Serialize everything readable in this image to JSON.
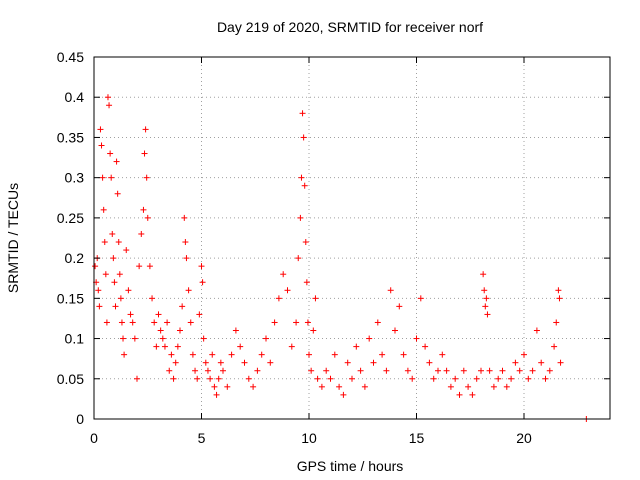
{
  "chart_data": {
    "type": "scatter",
    "title": "Day 219 of 2020, SRMTID for receiver norf",
    "xlabel": "GPS time / hours",
    "ylabel": "SRMTID / TECUs",
    "xlim": [
      0,
      24
    ],
    "ylim": [
      0,
      0.45
    ],
    "xticks": [
      0,
      5,
      10,
      15,
      20
    ],
    "yticks": [
      0,
      0.05,
      0.1,
      0.15,
      0.2,
      0.25,
      0.3,
      0.35,
      0.4,
      0.45
    ],
    "xtick_labels": [
      "0",
      "5",
      "10",
      "15",
      "20"
    ],
    "ytick_labels": [
      "0",
      "0.05",
      "0.1",
      "0.15",
      "0.2",
      "0.25",
      "0.3",
      "0.35",
      "0.4",
      "0.45"
    ],
    "grid": true,
    "marker": "+",
    "color": "#ff0000",
    "series": [
      {
        "name": "SRMTID",
        "points": [
          [
            0.05,
            0.19
          ],
          [
            0.1,
            0.17
          ],
          [
            0.15,
            0.2
          ],
          [
            0.2,
            0.16
          ],
          [
            0.25,
            0.14
          ],
          [
            0.3,
            0.36
          ],
          [
            0.35,
            0.34
          ],
          [
            0.4,
            0.3
          ],
          [
            0.45,
            0.26
          ],
          [
            0.5,
            0.22
          ],
          [
            0.55,
            0.18
          ],
          [
            0.6,
            0.12
          ],
          [
            0.65,
            0.4
          ],
          [
            0.7,
            0.39
          ],
          [
            0.75,
            0.33
          ],
          [
            0.8,
            0.3
          ],
          [
            0.85,
            0.23
          ],
          [
            0.9,
            0.2
          ],
          [
            0.95,
            0.17
          ],
          [
            1.0,
            0.14
          ],
          [
            1.05,
            0.32
          ],
          [
            1.1,
            0.28
          ],
          [
            1.15,
            0.22
          ],
          [
            1.2,
            0.18
          ],
          [
            1.25,
            0.15
          ],
          [
            1.3,
            0.12
          ],
          [
            1.35,
            0.1
          ],
          [
            1.4,
            0.08
          ],
          [
            1.5,
            0.21
          ],
          [
            1.6,
            0.16
          ],
          [
            1.7,
            0.13
          ],
          [
            1.8,
            0.12
          ],
          [
            1.9,
            0.1
          ],
          [
            2.0,
            0.05
          ],
          [
            2.1,
            0.19
          ],
          [
            2.2,
            0.23
          ],
          [
            2.3,
            0.26
          ],
          [
            2.35,
            0.33
          ],
          [
            2.4,
            0.36
          ],
          [
            2.45,
            0.3
          ],
          [
            2.5,
            0.25
          ],
          [
            2.6,
            0.19
          ],
          [
            2.7,
            0.15
          ],
          [
            2.8,
            0.12
          ],
          [
            2.9,
            0.09
          ],
          [
            3.0,
            0.13
          ],
          [
            3.1,
            0.11
          ],
          [
            3.2,
            0.1
          ],
          [
            3.3,
            0.09
          ],
          [
            3.4,
            0.12
          ],
          [
            3.5,
            0.06
          ],
          [
            3.6,
            0.08
          ],
          [
            3.7,
            0.05
          ],
          [
            3.8,
            0.07
          ],
          [
            3.9,
            0.09
          ],
          [
            4.0,
            0.11
          ],
          [
            4.1,
            0.14
          ],
          [
            4.2,
            0.25
          ],
          [
            4.25,
            0.22
          ],
          [
            4.3,
            0.2
          ],
          [
            4.4,
            0.16
          ],
          [
            4.5,
            0.12
          ],
          [
            4.6,
            0.08
          ],
          [
            4.7,
            0.06
          ],
          [
            4.8,
            0.05
          ],
          [
            4.9,
            0.13
          ],
          [
            5.0,
            0.19
          ],
          [
            5.05,
            0.17
          ],
          [
            5.1,
            0.1
          ],
          [
            5.2,
            0.07
          ],
          [
            5.3,
            0.06
          ],
          [
            5.4,
            0.05
          ],
          [
            5.5,
            0.08
          ],
          [
            5.6,
            0.04
          ],
          [
            5.7,
            0.03
          ],
          [
            5.8,
            0.05
          ],
          [
            5.9,
            0.07
          ],
          [
            6.0,
            0.06
          ],
          [
            6.2,
            0.04
          ],
          [
            6.4,
            0.08
          ],
          [
            6.6,
            0.11
          ],
          [
            6.8,
            0.09
          ],
          [
            7.0,
            0.07
          ],
          [
            7.2,
            0.05
          ],
          [
            7.4,
            0.04
          ],
          [
            7.6,
            0.06
          ],
          [
            7.8,
            0.08
          ],
          [
            8.0,
            0.1
          ],
          [
            8.2,
            0.07
          ],
          [
            8.4,
            0.12
          ],
          [
            8.6,
            0.15
          ],
          [
            8.8,
            0.18
          ],
          [
            9.0,
            0.16
          ],
          [
            9.2,
            0.09
          ],
          [
            9.4,
            0.12
          ],
          [
            9.5,
            0.2
          ],
          [
            9.6,
            0.25
          ],
          [
            9.65,
            0.3
          ],
          [
            9.7,
            0.38
          ],
          [
            9.75,
            0.35
          ],
          [
            9.8,
            0.29
          ],
          [
            9.85,
            0.22
          ],
          [
            9.9,
            0.17
          ],
          [
            9.95,
            0.12
          ],
          [
            10.0,
            0.08
          ],
          [
            10.1,
            0.06
          ],
          [
            10.2,
            0.11
          ],
          [
            10.3,
            0.15
          ],
          [
            10.4,
            0.05
          ],
          [
            10.6,
            0.04
          ],
          [
            10.8,
            0.06
          ],
          [
            11.0,
            0.05
          ],
          [
            11.2,
            0.08
          ],
          [
            11.4,
            0.04
          ],
          [
            11.6,
            0.03
          ],
          [
            11.8,
            0.07
          ],
          [
            12.0,
            0.05
          ],
          [
            12.2,
            0.09
          ],
          [
            12.4,
            0.06
          ],
          [
            12.6,
            0.04
          ],
          [
            12.8,
            0.1
          ],
          [
            13.0,
            0.07
          ],
          [
            13.2,
            0.12
          ],
          [
            13.4,
            0.08
          ],
          [
            13.6,
            0.06
          ],
          [
            13.8,
            0.16
          ],
          [
            14.0,
            0.11
          ],
          [
            14.2,
            0.14
          ],
          [
            14.4,
            0.08
          ],
          [
            14.6,
            0.06
          ],
          [
            14.8,
            0.05
          ],
          [
            15.0,
            0.1
          ],
          [
            15.2,
            0.15
          ],
          [
            15.4,
            0.09
          ],
          [
            15.6,
            0.07
          ],
          [
            15.8,
            0.05
          ],
          [
            16.0,
            0.06
          ],
          [
            16.2,
            0.08
          ],
          [
            16.4,
            0.06
          ],
          [
            16.6,
            0.04
          ],
          [
            16.8,
            0.05
          ],
          [
            17.0,
            0.03
          ],
          [
            17.2,
            0.06
          ],
          [
            17.4,
            0.04
          ],
          [
            17.6,
            0.03
          ],
          [
            17.8,
            0.05
          ],
          [
            18.0,
            0.06
          ],
          [
            18.1,
            0.18
          ],
          [
            18.15,
            0.16
          ],
          [
            18.2,
            0.14
          ],
          [
            18.25,
            0.15
          ],
          [
            18.3,
            0.13
          ],
          [
            18.4,
            0.06
          ],
          [
            18.6,
            0.04
          ],
          [
            18.8,
            0.05
          ],
          [
            19.0,
            0.06
          ],
          [
            19.2,
            0.04
          ],
          [
            19.4,
            0.05
          ],
          [
            19.6,
            0.07
          ],
          [
            19.8,
            0.06
          ],
          [
            20.0,
            0.08
          ],
          [
            20.2,
            0.05
          ],
          [
            20.4,
            0.06
          ],
          [
            20.6,
            0.11
          ],
          [
            20.8,
            0.07
          ],
          [
            21.0,
            0.05
          ],
          [
            21.2,
            0.06
          ],
          [
            21.4,
            0.09
          ],
          [
            21.5,
            0.12
          ],
          [
            21.6,
            0.16
          ],
          [
            21.65,
            0.15
          ],
          [
            21.7,
            0.07
          ],
          [
            22.9,
            0.0
          ]
        ]
      }
    ]
  }
}
